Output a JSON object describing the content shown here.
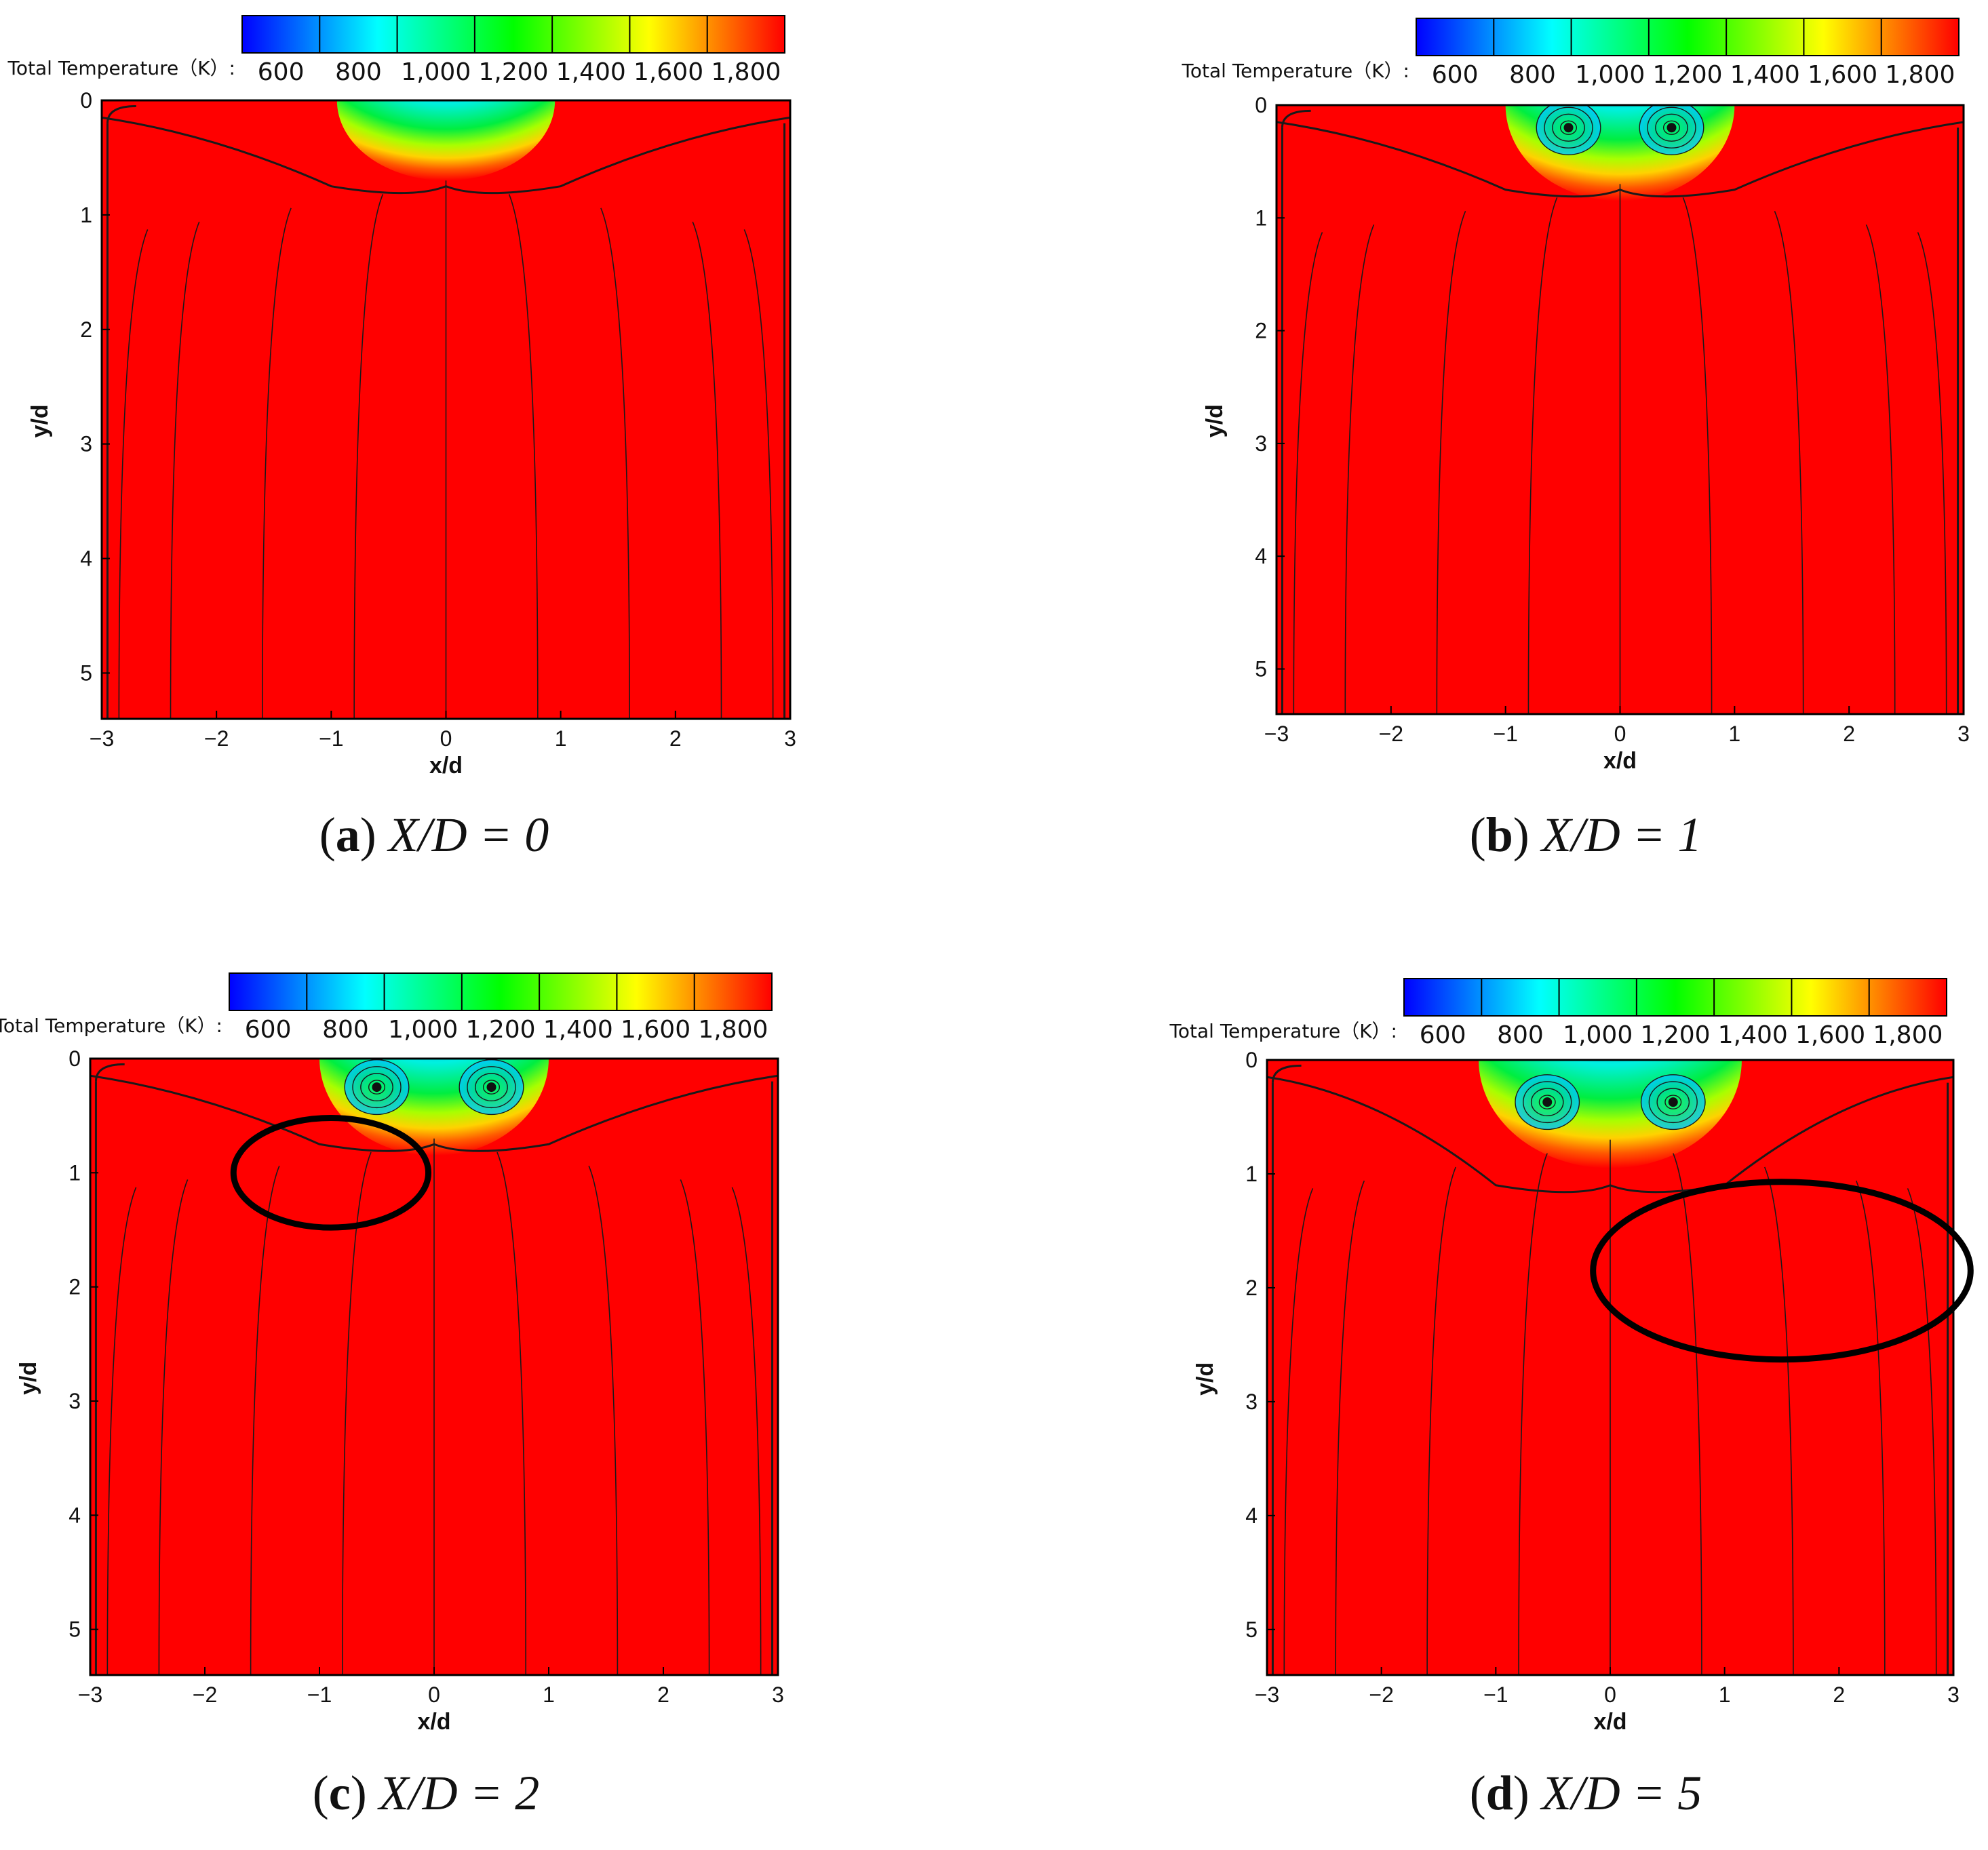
{
  "colorbar": {
    "label": "Total Temperature（K）:",
    "tick_labels": [
      "600",
      "800",
      "1,000",
      "1,200",
      "1,400",
      "1,600",
      "1,800"
    ],
    "range": [
      500,
      1900
    ],
    "colormap": [
      "#0000ff",
      "#0080ff",
      "#00ffff",
      "#00ff80",
      "#00ff00",
      "#80ff00",
      "#ffff00",
      "#ff8000",
      "#ff0000"
    ]
  },
  "axes": {
    "xlabel": "x/d",
    "ylabel": "y/d",
    "xlim": [
      -3,
      3
    ],
    "ylim": [
      0,
      5.4
    ],
    "y_inverted": true
  },
  "chart_data": [
    {
      "type": "heatmap",
      "panel": "a",
      "caption_letter": "a",
      "caption_rest": "X/D = 0",
      "xlabel": "x/d",
      "ylabel": "y/d",
      "x_ticks": [
        "−3",
        "−2",
        "−1",
        "0",
        "1",
        "2",
        "3"
      ],
      "y_ticks": [
        "0",
        "1",
        "2",
        "3",
        "4",
        "5"
      ],
      "xlim": [
        -3,
        3
      ],
      "ylim": [
        0,
        5.4
      ],
      "cold_core": {
        "x_center": 0,
        "depth": 0.7,
        "half_width": 0.95,
        "min_temperature": 550
      },
      "background_temperature": 1850,
      "vortices": [],
      "highlight_ellipse": null
    },
    {
      "type": "heatmap",
      "panel": "b",
      "caption_letter": "b",
      "caption_rest": "X/D = 1",
      "xlabel": "x/d",
      "ylabel": "y/d",
      "x_ticks": [
        "−3",
        "−2",
        "−1",
        "0",
        "1",
        "2",
        "3"
      ],
      "y_ticks": [
        "0",
        "1",
        "2",
        "3",
        "4",
        "5"
      ],
      "xlim": [
        -3,
        3
      ],
      "ylim": [
        0,
        5.4
      ],
      "cold_core": {
        "x_center": 0,
        "depth": 0.85,
        "half_width": 1.0,
        "min_temperature": 550
      },
      "background_temperature": 1850,
      "vortices": [
        {
          "x": -0.45,
          "y": 0.2
        },
        {
          "x": 0.45,
          "y": 0.2
        }
      ],
      "highlight_ellipse": null
    },
    {
      "type": "heatmap",
      "panel": "c",
      "caption_letter": "c",
      "caption_rest": "X/D = 2",
      "xlabel": "x/d",
      "ylabel": "y/d",
      "x_ticks": [
        "−3",
        "−2",
        "−1",
        "0",
        "1",
        "2",
        "3"
      ],
      "y_ticks": [
        "0",
        "1",
        "2",
        "3",
        "4",
        "5"
      ],
      "xlim": [
        -3,
        3
      ],
      "ylim": [
        0,
        5.4
      ],
      "cold_core": {
        "x_center": 0,
        "depth": 0.85,
        "half_width": 1.0,
        "min_temperature": 550
      },
      "background_temperature": 1850,
      "vortices": [
        {
          "x": -0.5,
          "y": 0.25
        },
        {
          "x": 0.5,
          "y": 0.25
        }
      ],
      "highlight_ellipse": {
        "cx": -0.9,
        "cy": 1.0,
        "rx": 0.85,
        "ry": 0.48
      }
    },
    {
      "type": "heatmap",
      "panel": "d",
      "caption_letter": "d",
      "caption_rest": "X/D = 5",
      "xlabel": "x/d",
      "ylabel": "y/d",
      "x_ticks": [
        "−3",
        "−2",
        "−1",
        "0",
        "1",
        "2",
        "3"
      ],
      "y_ticks": [
        "0",
        "1",
        "2",
        "3",
        "4",
        "5"
      ],
      "xlim": [
        -3,
        3
      ],
      "ylim": [
        0,
        5.4
      ],
      "cold_core": {
        "x_center": 0,
        "depth": 0.95,
        "half_width": 1.15,
        "min_temperature": 550
      },
      "background_temperature": 1850,
      "vortices": [
        {
          "x": -0.55,
          "y": 0.37
        },
        {
          "x": 0.55,
          "y": 0.37
        }
      ],
      "highlight_ellipse": {
        "cx": 1.5,
        "cy": 1.85,
        "rx": 1.65,
        "ry": 0.78
      }
    }
  ]
}
